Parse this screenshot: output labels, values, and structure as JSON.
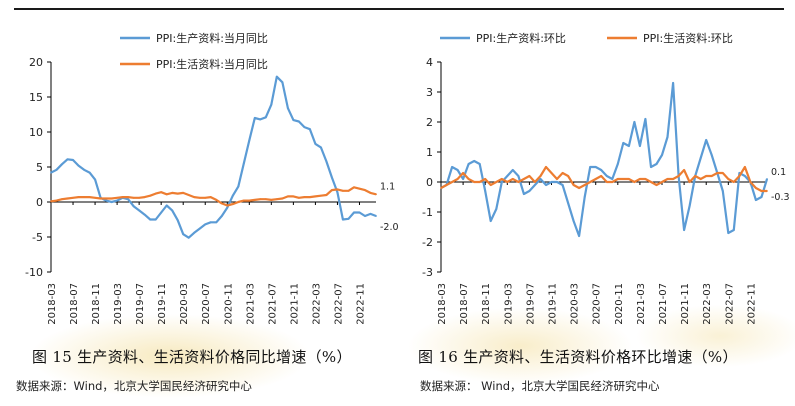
{
  "colors": {
    "blue": "#5b9bd5",
    "orange": "#ed7d31",
    "axis": "#000000",
    "text": "#222222"
  },
  "left": {
    "caption": "图 15  生产资料、生活资料价格同比增速（%）",
    "source": "数据来源：Wind，北京大学国民经济研究中心"
  },
  "right": {
    "caption": "图 16  生产资料、生活资料价格环比增速（%）",
    "source": "数据来源：  Wind，北京大学国民经济研究中心"
  },
  "chart_data": [
    {
      "type": "line",
      "title": "",
      "ylim": [
        -10,
        20
      ],
      "yticks": [
        "20",
        "15",
        "10",
        "5",
        "0",
        "-5",
        "-10"
      ],
      "xtick_labels": [
        "2018-03",
        "2018-07",
        "2018-11",
        "2019-03",
        "2019-07",
        "2019-11",
        "2020-03",
        "2020-07",
        "2020-11",
        "2021-03",
        "2021-07",
        "2021-11",
        "2022-03",
        "2022-07",
        "2022-11"
      ],
      "categories": [
        "2018-03",
        "2018-04",
        "2018-05",
        "2018-06",
        "2018-07",
        "2018-08",
        "2018-09",
        "2018-10",
        "2018-11",
        "2018-12",
        "2019-01",
        "2019-02",
        "2019-03",
        "2019-04",
        "2019-05",
        "2019-06",
        "2019-07",
        "2019-08",
        "2019-09",
        "2019-10",
        "2019-11",
        "2019-12",
        "2020-01",
        "2020-02",
        "2020-03",
        "2020-04",
        "2020-05",
        "2020-06",
        "2020-07",
        "2020-08",
        "2020-09",
        "2020-10",
        "2020-11",
        "2020-12",
        "2021-01",
        "2021-02",
        "2021-03",
        "2021-04",
        "2021-05",
        "2021-06",
        "2021-07",
        "2021-08",
        "2021-09",
        "2021-10",
        "2021-11",
        "2021-12",
        "2022-01",
        "2022-02",
        "2022-03",
        "2022-04",
        "2022-05",
        "2022-06",
        "2022-07",
        "2022-08",
        "2022-09",
        "2022-10",
        "2022-11",
        "2022-12",
        "2023-01",
        "2023-02"
      ],
      "series": [
        {
          "name": "PPI:生产资料:当月同比",
          "color": "#5b9bd5",
          "values": [
            4.2,
            4.6,
            5.4,
            6.1,
            6.0,
            5.2,
            4.6,
            4.2,
            3.2,
            0.6,
            0.2,
            0.0,
            0.2,
            0.6,
            0.4,
            -0.6,
            -1.2,
            -1.8,
            -2.5,
            -2.5,
            -1.5,
            -0.5,
            -1.2,
            -2.6,
            -4.6,
            -5.1,
            -4.4,
            -3.8,
            -3.2,
            -2.9,
            -2.9,
            -2.0,
            -0.8,
            0.9,
            2.2,
            5.5,
            8.8,
            12.0,
            11.8,
            12.1,
            13.9,
            17.9,
            17.1,
            13.4,
            11.7,
            11.5,
            10.7,
            10.4,
            8.3,
            7.8,
            5.8,
            3.5,
            1.4,
            -2.5,
            -2.4,
            -1.5,
            -1.5,
            -2.0,
            -1.7,
            -2.0
          ],
          "end_label": "-2.0"
        },
        {
          "name": "PPI:生活资料:当月同比",
          "color": "#ed7d31",
          "values": [
            0.1,
            0.2,
            0.4,
            0.5,
            0.6,
            0.7,
            0.7,
            0.7,
            0.6,
            0.5,
            0.5,
            0.5,
            0.6,
            0.7,
            0.7,
            0.6,
            0.6,
            0.7,
            0.9,
            1.2,
            1.4,
            1.1,
            1.3,
            1.2,
            1.3,
            1.0,
            0.7,
            0.6,
            0.6,
            0.7,
            0.3,
            -0.2,
            -0.5,
            -0.3,
            0.0,
            0.2,
            0.2,
            0.3,
            0.4,
            0.4,
            0.3,
            0.4,
            0.5,
            0.8,
            0.8,
            0.6,
            0.7,
            0.7,
            0.8,
            0.9,
            1.0,
            1.7,
            1.8,
            1.6,
            1.6,
            2.1,
            1.9,
            1.7,
            1.3,
            1.1
          ],
          "end_label": "1.1"
        }
      ]
    },
    {
      "type": "line",
      "title": "",
      "ylim": [
        -3,
        4
      ],
      "yticks": [
        "4",
        "3",
        "2",
        "1",
        "0",
        "-1",
        "-2",
        "-3"
      ],
      "xtick_labels": [
        "2018-03",
        "2018-07",
        "2018-11",
        "2019-03",
        "2019-07",
        "2019-11",
        "2020-03",
        "2020-07",
        "2020-11",
        "2021-03",
        "2021-07",
        "2021-11",
        "2022-03",
        "2022-07",
        "2022-11"
      ],
      "categories": [
        "2018-03",
        "2018-04",
        "2018-05",
        "2018-06",
        "2018-07",
        "2018-08",
        "2018-09",
        "2018-10",
        "2018-11",
        "2018-12",
        "2019-01",
        "2019-02",
        "2019-03",
        "2019-04",
        "2019-05",
        "2019-06",
        "2019-07",
        "2019-08",
        "2019-09",
        "2019-10",
        "2019-11",
        "2019-12",
        "2020-01",
        "2020-02",
        "2020-03",
        "2020-04",
        "2020-05",
        "2020-06",
        "2020-07",
        "2020-08",
        "2020-09",
        "2020-10",
        "2020-11",
        "2020-12",
        "2021-01",
        "2021-02",
        "2021-03",
        "2021-04",
        "2021-05",
        "2021-06",
        "2021-07",
        "2021-08",
        "2021-09",
        "2021-10",
        "2021-11",
        "2021-12",
        "2022-01",
        "2022-02",
        "2022-03",
        "2022-04",
        "2022-05",
        "2022-06",
        "2022-07",
        "2022-08",
        "2022-09",
        "2022-10",
        "2022-11",
        "2022-12",
        "2023-01",
        "2023-02"
      ],
      "series": [
        {
          "name": "PPI:生产资料:环比",
          "color": "#5b9bd5",
          "values": [
            -0.2,
            -0.1,
            0.5,
            0.4,
            0.1,
            0.6,
            0.7,
            0.6,
            -0.3,
            -1.3,
            -0.9,
            0.0,
            0.2,
            0.4,
            0.2,
            -0.4,
            -0.3,
            -0.1,
            0.1,
            -0.1,
            0.0,
            0.0,
            -0.1,
            -0.7,
            -1.3,
            -1.8,
            -0.5,
            0.5,
            0.5,
            0.4,
            0.2,
            0.1,
            0.6,
            1.3,
            1.2,
            2.0,
            1.2,
            2.1,
            0.5,
            0.6,
            0.9,
            1.5,
            3.3,
            0.2,
            -1.6,
            -0.8,
            0.2,
            0.8,
            1.4,
            0.9,
            0.3,
            -0.3,
            -1.7,
            -1.6,
            0.3,
            0.2,
            0.0,
            -0.6,
            -0.5,
            0.1
          ],
          "end_label": "0.1"
        },
        {
          "name": "PPI:生活资料:环比",
          "color": "#ed7d31",
          "values": [
            -0.2,
            -0.1,
            0.0,
            0.1,
            0.3,
            0.1,
            0.0,
            0.0,
            0.1,
            -0.1,
            0.0,
            0.1,
            0.0,
            0.1,
            0.0,
            0.1,
            0.2,
            0.0,
            0.2,
            0.5,
            0.3,
            0.1,
            0.3,
            0.2,
            -0.1,
            -0.2,
            -0.1,
            0.0,
            0.1,
            0.2,
            0.0,
            0.0,
            0.1,
            0.1,
            0.1,
            0.0,
            0.1,
            0.1,
            0.0,
            -0.1,
            0.0,
            0.1,
            0.1,
            0.2,
            0.4,
            0.0,
            0.2,
            0.1,
            0.2,
            0.2,
            0.3,
            0.3,
            0.1,
            0.0,
            0.2,
            0.5,
            0.0,
            -0.2,
            -0.3,
            -0.3
          ],
          "end_label": "-0.3"
        }
      ]
    }
  ]
}
